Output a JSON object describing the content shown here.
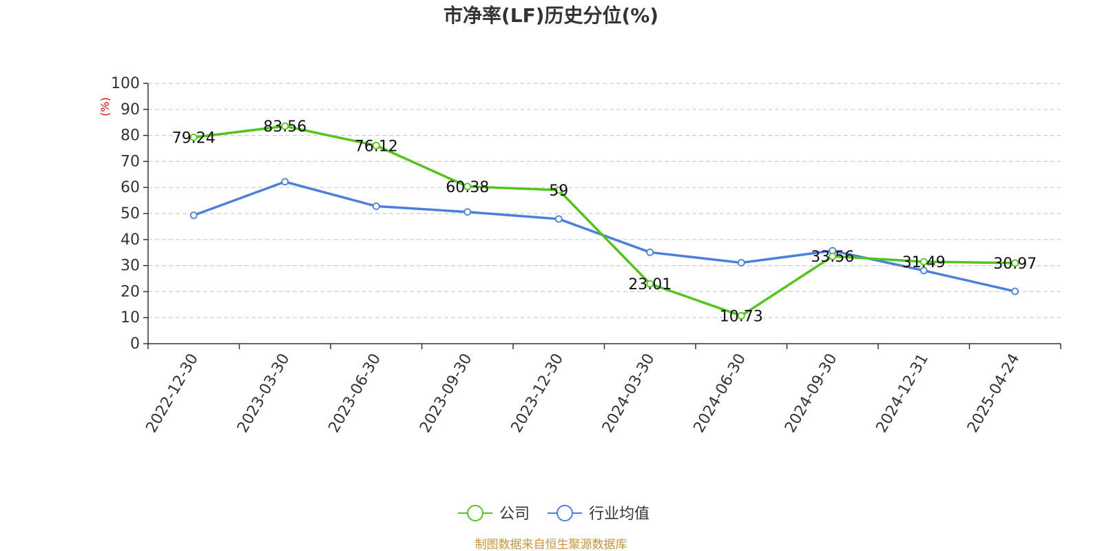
{
  "chart_data": {
    "type": "line",
    "title": "市净率(LF)历史分位(%)",
    "ylabel": "(%)",
    "xlabel": "",
    "ylim": [
      0,
      100
    ],
    "yticks": [
      0,
      10,
      20,
      30,
      40,
      50,
      60,
      70,
      80,
      90,
      100
    ],
    "grid": true,
    "legend_position": "bottom",
    "categories": [
      "2022-12-30",
      "2023-03-30",
      "2023-06-30",
      "2023-09-30",
      "2023-12-30",
      "2024-03-30",
      "2024-06-30",
      "2024-09-30",
      "2024-12-31",
      "2025-04-24"
    ],
    "series": [
      {
        "name": "公司",
        "color": "#52c41a",
        "values": [
          79.24,
          83.56,
          76.12,
          60.38,
          59,
          23.01,
          10.73,
          33.56,
          31.49,
          30.97
        ],
        "labels": [
          "79.24",
          "83.56",
          "76.12",
          "60.38",
          "59",
          "23.01",
          "10.73",
          "33.56",
          "31.49",
          "30.97"
        ]
      },
      {
        "name": "行业均值",
        "color": "#4a7fdc",
        "values": [
          49.3,
          62.2,
          52.8,
          50.6,
          47.9,
          35.1,
          31.1,
          35.7,
          28.1,
          20.1
        ]
      }
    ]
  },
  "source": "制图数据来自恒生聚源数据库"
}
